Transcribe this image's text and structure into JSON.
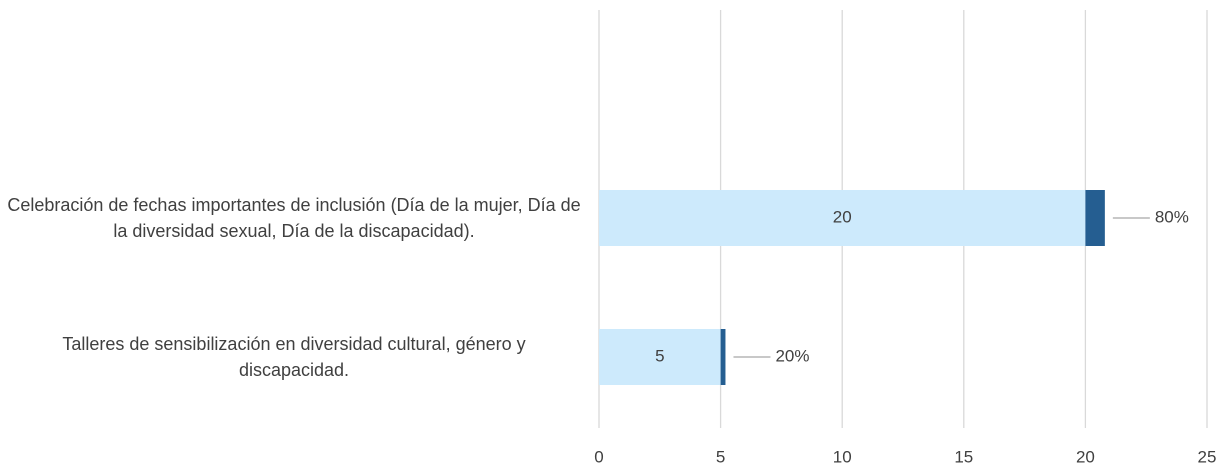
{
  "chart_data": {
    "type": "hbar_stacked",
    "categories": [
      "Celebración de fechas importantes de inclusión (Día de la mujer, Día de la diversidad sexual, Día de la discapacidad).",
      "Talleres de sensibilización en diversidad cultural, género y discapacidad."
    ],
    "series": [
      {
        "color": "#cdeafc",
        "values": [
          20,
          5
        ]
      },
      {
        "color": "#255e91",
        "values": [
          0.8,
          0.2
        ],
        "value_labels": [
          "80%",
          "20%"
        ]
      }
    ],
    "xlim": [
      0,
      25
    ],
    "xticks": [
      0,
      5,
      10,
      15,
      20,
      25
    ],
    "grid": true
  }
}
